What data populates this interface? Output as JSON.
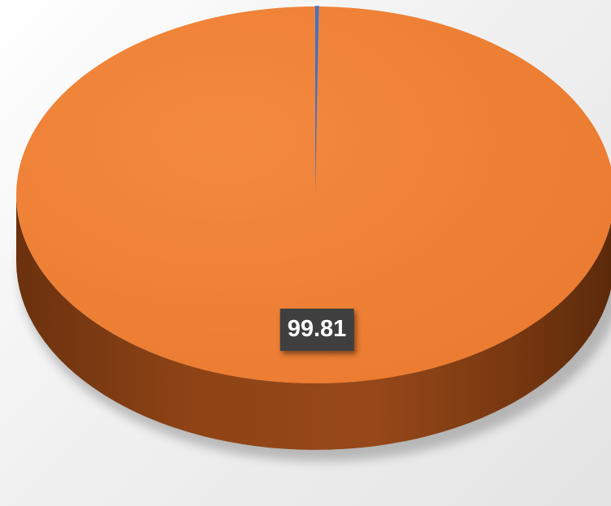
{
  "chart_data": {
    "type": "pie",
    "title": "",
    "slices": [
      {
        "label": "",
        "value": 0.19,
        "color": "#4472C4",
        "show_label": false
      },
      {
        "label": "",
        "value": 99.81,
        "color": "#ED7D31",
        "show_label": true
      }
    ],
    "data_labels": [
      "99.81"
    ],
    "style": "3d",
    "legend": "none"
  },
  "colors": {
    "orange_top": "#ED7D31",
    "orange_side_dark": "#6b320f",
    "blue_slice": "#4472C4",
    "label_bg": "#3f3f3f"
  }
}
